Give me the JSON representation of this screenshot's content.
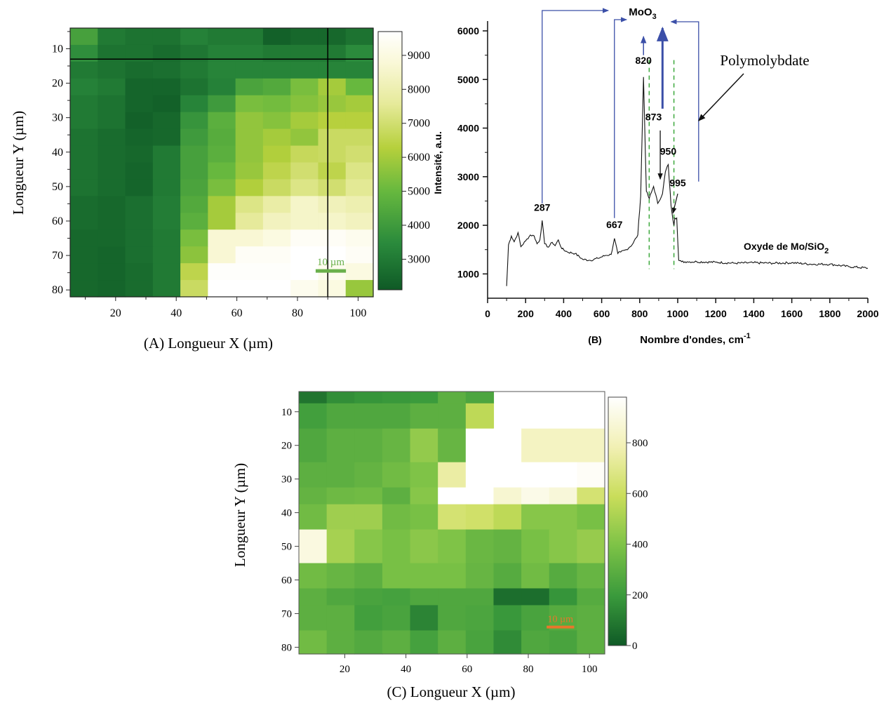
{
  "chart_data": [
    {
      "type": "heatmap",
      "panel_caption": "(A)  Longueur X (µm)",
      "xlabel": "Longueur X (µm)",
      "ylabel": "Longueur Y (µm)",
      "xticks": [
        20,
        40,
        60,
        80,
        100
      ],
      "yticks": [
        10,
        20,
        30,
        40,
        50,
        60,
        70,
        80
      ],
      "xlim": [
        5,
        105
      ],
      "ylim": [
        4,
        82
      ],
      "x_centers": [
        9.2,
        18.3,
        27.5,
        36.7,
        45.8,
        55,
        64.2,
        73.3,
        82.5,
        91.7,
        100.8
      ],
      "y_centers": [
        5,
        10,
        15,
        20,
        25,
        30,
        35,
        40,
        45,
        50,
        55,
        60,
        65,
        70,
        75,
        80
      ],
      "values": [
        [
          4200,
          3000,
          2800,
          2800,
          3200,
          3000,
          3000,
          2300,
          2500,
          2500,
          2800
        ],
        [
          3600,
          2800,
          2800,
          2600,
          2900,
          3200,
          3200,
          3000,
          3000,
          3000,
          3500
        ],
        [
          3000,
          2800,
          2600,
          2700,
          3000,
          3300,
          3300,
          3300,
          3300,
          3300,
          3300
        ],
        [
          3200,
          3000,
          2400,
          2400,
          2800,
          3200,
          4300,
          4500,
          5300,
          6000,
          5000
        ],
        [
          3000,
          2800,
          2400,
          2300,
          3300,
          4000,
          5300,
          5200,
          5500,
          5800,
          6000
        ],
        [
          3000,
          2800,
          2300,
          2500,
          3800,
          4700,
          5700,
          5500,
          6000,
          6300,
          6300
        ],
        [
          2800,
          2600,
          2400,
          2500,
          4000,
          4600,
          5700,
          6000,
          5700,
          6800,
          6800
        ],
        [
          2800,
          2600,
          2500,
          3000,
          4200,
          4700,
          5700,
          6200,
          6700,
          6800,
          7000
        ],
        [
          2800,
          2600,
          2400,
          3000,
          4200,
          5000,
          5800,
          6500,
          7000,
          6500,
          7300
        ],
        [
          2800,
          2600,
          2400,
          3000,
          4300,
          5300,
          6200,
          6800,
          7300,
          7000,
          7500
        ],
        [
          2600,
          2500,
          2700,
          3100,
          4500,
          6000,
          7300,
          7800,
          8500,
          8200,
          8000
        ],
        [
          2600,
          2500,
          2700,
          3100,
          4700,
          6000,
          7600,
          8300,
          8500,
          8500,
          8300
        ],
        [
          2500,
          2500,
          2700,
          3000,
          5300,
          8700,
          8700,
          9000,
          9500,
          9500,
          9300
        ],
        [
          2500,
          2400,
          2700,
          3000,
          5600,
          8700,
          9500,
          9500,
          9700,
          9700,
          9500
        ],
        [
          2500,
          2400,
          2600,
          3000,
          6500,
          9600,
          9600,
          9600,
          9700,
          9300,
          9000
        ],
        [
          2500,
          2400,
          2600,
          3000,
          6800,
          9700,
          9700,
          9700,
          9300,
          9000,
          5800
        ]
      ],
      "colorbar": {
        "ticks": [
          3000,
          4000,
          5000,
          6000,
          7000,
          8000,
          9000
        ],
        "range": [
          2100,
          9700
        ]
      },
      "crosshair": {
        "x": 90,
        "y": 13
      },
      "scale_bar_label": "10 µm",
      "scale_bar_color": "#6ab04c"
    },
    {
      "type": "line",
      "panel_caption": "(B)",
      "xlabel": "Nombre d'ondes, cm",
      "xlabel_sup": "-1",
      "ylabel": "Intensité, a.u.",
      "xlim": [
        0,
        2000
      ],
      "ylim": [
        500,
        6000
      ],
      "xticks": [
        0,
        200,
        400,
        600,
        800,
        1000,
        1200,
        1400,
        1600,
        1800,
        2000
      ],
      "yticks": [
        1000,
        2000,
        3000,
        4000,
        5000,
        6000
      ],
      "series": [
        {
          "name": "Oxyde de Mo/SiO",
          "name_sub": "2",
          "x": [
            100,
            110,
            125,
            140,
            160,
            175,
            200,
            225,
            245,
            260,
            275,
            287,
            300,
            320,
            340,
            355,
            372,
            390,
            420,
            460,
            500,
            540,
            580,
            620,
            650,
            667,
            685,
            700,
            730,
            760,
            790,
            805,
            820,
            835,
            850,
            873,
            895,
            920,
            935,
            950,
            965,
            980,
            985,
            995,
            1005,
            1020,
            1050,
            1100,
            1200,
            1300,
            1400,
            1500,
            1600,
            1700,
            1800,
            1900,
            2000
          ],
          "y": [
            750,
            1600,
            1780,
            1660,
            1850,
            1560,
            1680,
            1800,
            1780,
            1620,
            1700,
            2100,
            1620,
            1550,
            1650,
            1580,
            1700,
            1520,
            1450,
            1420,
            1300,
            1280,
            1320,
            1380,
            1400,
            1730,
            1420,
            1450,
            1500,
            1600,
            1800,
            2600,
            5050,
            2700,
            2550,
            2800,
            2450,
            2650,
            3100,
            3250,
            2400,
            2000,
            2150,
            2150,
            1280,
            1250,
            1250,
            1250,
            1240,
            1220,
            1230,
            1220,
            1230,
            1200,
            1200,
            1150,
            1120
          ]
        }
      ],
      "peak_labels": [
        {
          "label": "287",
          "x": 287,
          "y": 2300
        },
        {
          "label": "667",
          "x": 667,
          "y": 1940
        },
        {
          "label": "820",
          "x": 820,
          "y": 5320
        },
        {
          "label": "873",
          "x": 873,
          "y": 4160
        },
        {
          "label": "950",
          "x": 950,
          "y": 3450
        },
        {
          "label": "995",
          "x": 1000,
          "y": 2800
        }
      ],
      "species_labels": {
        "oxide": "MoO",
        "oxide_sub": "3",
        "polymer": "Polymolybdate"
      },
      "dashed_lines_x": [
        850,
        980
      ],
      "dashed_color": "#3ca83c",
      "arrow_color": "#3b4fa8"
    },
    {
      "type": "heatmap",
      "panel_caption": "(C) Longueur X (µm)",
      "xlabel": "Longueur X (µm)",
      "ylabel": "Longueur Y (µm)",
      "xticks": [
        20,
        40,
        60,
        80,
        100
      ],
      "yticks": [
        10,
        20,
        30,
        40,
        50,
        60,
        70,
        80
      ],
      "xlim": [
        5,
        105
      ],
      "ylim": [
        4,
        82
      ],
      "x_centers": [
        9.2,
        18.3,
        27.5,
        36.7,
        45.8,
        55,
        64.2,
        73.3,
        82.5,
        91.7,
        100.8
      ],
      "y_centers": [
        5,
        10,
        15,
        20,
        25,
        30,
        35,
        40,
        45,
        50,
        55,
        60,
        65,
        70,
        75,
        80
      ],
      "values": [
        [
          80,
          160,
          180,
          190,
          200,
          300,
          250,
          null,
          null,
          null,
          null
        ],
        [
          220,
          260,
          260,
          260,
          300,
          300,
          560,
          null,
          null,
          null,
          null
        ],
        [
          260,
          300,
          300,
          330,
          450,
          330,
          980,
          980,
          820,
          820,
          820
        ],
        [
          300,
          300,
          320,
          360,
          400,
          750,
          980,
          980,
          980,
          980,
          960
        ],
        [
          320,
          350,
          360,
          300,
          420,
          980,
          980,
          860,
          920,
          880,
          640
        ],
        [
          360,
          480,
          480,
          360,
          380,
          640,
          620,
          560,
          420,
          420,
          380
        ],
        [
          900,
          500,
          420,
          380,
          430,
          400,
          340,
          320,
          380,
          420,
          460
        ],
        [
          360,
          330,
          300,
          380,
          380,
          380,
          330,
          280,
          360,
          280,
          330
        ],
        [
          300,
          260,
          240,
          230,
          260,
          260,
          260,
          60,
          60,
          180,
          280
        ],
        [
          300,
          300,
          220,
          240,
          130,
          260,
          250,
          190,
          240,
          280,
          300
        ],
        [
          360,
          300,
          270,
          300,
          230,
          300,
          240,
          150,
          260,
          240,
          300
        ]
      ],
      "y_centers_rows": [
        5,
        10,
        20,
        30,
        35,
        40,
        50,
        60,
        65,
        70,
        80
      ],
      "colorbar": {
        "ticks": [
          0,
          200,
          400,
          600,
          800
        ],
        "range": [
          0,
          980
        ]
      },
      "scale_bar_label": "10 µm",
      "scale_bar_color": "#e8772b"
    }
  ]
}
